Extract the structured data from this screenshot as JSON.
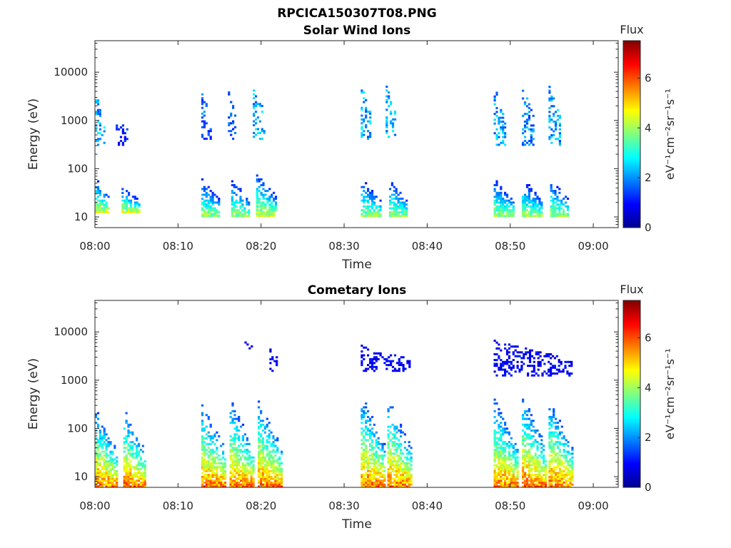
{
  "figure_title": "RPCICA150307T08.PNG",
  "colors": {
    "axis": "#262626",
    "background": "#ffffff"
  },
  "chart_data": [
    {
      "type": "heatmap",
      "title": "Solar Wind Ions",
      "xlabel": "Time",
      "ylabel": "Energy (eV)",
      "x_tick_labels": [
        "08:00",
        "08:10",
        "08:20",
        "08:30",
        "08:40",
        "08:50",
        "09:00"
      ],
      "xlim_minutes": [
        0,
        63
      ],
      "y_scale": "log",
      "y_tick_labels": [
        "10",
        "100",
        "1000",
        "10000"
      ],
      "ylim": [
        6,
        45000
      ],
      "colorbar": {
        "title": "Flux",
        "label": "eV⁻¹cm⁻²sr⁻¹s⁻¹",
        "ticks": [
          "0",
          "2",
          "4",
          "6"
        ],
        "range": [
          0,
          7.5
        ],
        "colormap": "jet"
      },
      "grid": false,
      "bursts": [
        {
          "t_start": 0.0,
          "t_end": 1.7,
          "band": "low",
          "e_lo": 12,
          "e_hi": 60,
          "flux_peak": 5.0
        },
        {
          "t_start": 0.0,
          "t_end": 1.2,
          "band": "high",
          "e_lo": 300,
          "e_hi": 4500,
          "flux_peak": 3.0
        },
        {
          "t_start": 3.2,
          "t_end": 5.4,
          "band": "low",
          "e_lo": 12,
          "e_hi": 40,
          "flux_peak": 5.0
        },
        {
          "t_start": 2.5,
          "t_end": 4.0,
          "band": "high",
          "e_lo": 300,
          "e_hi": 1200,
          "flux_peak": 1.5
        },
        {
          "t_start": 12.8,
          "t_end": 15.0,
          "band": "low",
          "e_lo": 10,
          "e_hi": 60,
          "flux_peak": 4.5
        },
        {
          "t_start": 12.8,
          "t_end": 14.0,
          "band": "high",
          "e_lo": 400,
          "e_hi": 3500,
          "flux_peak": 2.2
        },
        {
          "t_start": 16.4,
          "t_end": 18.6,
          "band": "low",
          "e_lo": 10,
          "e_hi": 60,
          "flux_peak": 4.5
        },
        {
          "t_start": 16.0,
          "t_end": 17.0,
          "band": "high",
          "e_lo": 400,
          "e_hi": 5000,
          "flux_peak": 2.0
        },
        {
          "t_start": 19.4,
          "t_end": 21.8,
          "band": "low",
          "e_lo": 10,
          "e_hi": 80,
          "flux_peak": 5.0
        },
        {
          "t_start": 19.0,
          "t_end": 20.5,
          "band": "high",
          "e_lo": 400,
          "e_hi": 5000,
          "flux_peak": 3.0
        },
        {
          "t_start": 32.0,
          "t_end": 34.4,
          "band": "low",
          "e_lo": 10,
          "e_hi": 60,
          "flux_peak": 4.5
        },
        {
          "t_start": 32.0,
          "t_end": 33.2,
          "band": "high",
          "e_lo": 400,
          "e_hi": 5000,
          "flux_peak": 3.0
        },
        {
          "t_start": 35.4,
          "t_end": 37.6,
          "band": "low",
          "e_lo": 10,
          "e_hi": 60,
          "flux_peak": 4.5
        },
        {
          "t_start": 35.0,
          "t_end": 36.2,
          "band": "high",
          "e_lo": 400,
          "e_hi": 5000,
          "flux_peak": 2.8
        },
        {
          "t_start": 48.0,
          "t_end": 50.4,
          "band": "low",
          "e_lo": 10,
          "e_hi": 60,
          "flux_peak": 4.5
        },
        {
          "t_start": 48.0,
          "t_end": 49.4,
          "band": "high",
          "e_lo": 300,
          "e_hi": 5000,
          "flux_peak": 2.8
        },
        {
          "t_start": 51.4,
          "t_end": 53.8,
          "band": "low",
          "e_lo": 10,
          "e_hi": 60,
          "flux_peak": 4.5
        },
        {
          "t_start": 51.4,
          "t_end": 52.8,
          "band": "high",
          "e_lo": 300,
          "e_hi": 5000,
          "flux_peak": 2.5
        },
        {
          "t_start": 54.8,
          "t_end": 57.0,
          "band": "low",
          "e_lo": 10,
          "e_hi": 60,
          "flux_peak": 4.5
        },
        {
          "t_start": 54.6,
          "t_end": 56.0,
          "band": "high",
          "e_lo": 300,
          "e_hi": 5000,
          "flux_peak": 2.8
        }
      ]
    },
    {
      "type": "heatmap",
      "title": "Cometary Ions",
      "xlabel": "Time",
      "ylabel": "Energy (eV)",
      "x_tick_labels": [
        "08:00",
        "08:10",
        "08:20",
        "08:30",
        "08:40",
        "08:50",
        "09:00"
      ],
      "xlim_minutes": [
        0,
        63
      ],
      "y_scale": "log",
      "y_tick_labels": [
        "10",
        "100",
        "1000",
        "10000"
      ],
      "ylim": [
        6,
        45000
      ],
      "colorbar": {
        "title": "Flux",
        "label": "eV⁻¹cm⁻²sr⁻¹s⁻¹",
        "ticks": [
          "0",
          "2",
          "4",
          "6"
        ],
        "range": [
          0,
          7.5
        ],
        "colormap": "jet"
      },
      "grid": false,
      "bursts": [
        {
          "t_start": 0.0,
          "t_end": 2.6,
          "band": "low",
          "e_lo": 6,
          "e_hi": 250,
          "flux_peak": 6.5
        },
        {
          "t_start": 3.4,
          "t_end": 6.0,
          "band": "low",
          "e_lo": 6,
          "e_hi": 250,
          "flux_peak": 6.5
        },
        {
          "t_start": 12.8,
          "t_end": 15.8,
          "band": "low",
          "e_lo": 6,
          "e_hi": 300,
          "flux_peak": 6.5
        },
        {
          "t_start": 16.2,
          "t_end": 19.0,
          "band": "low",
          "e_lo": 6,
          "e_hi": 400,
          "flux_peak": 6.5
        },
        {
          "t_start": 19.6,
          "t_end": 22.4,
          "band": "low",
          "e_lo": 6,
          "e_hi": 400,
          "flux_peak": 6.5
        },
        {
          "t_start": 32.0,
          "t_end": 34.8,
          "band": "low",
          "e_lo": 6,
          "e_hi": 500,
          "flux_peak": 6.5
        },
        {
          "t_start": 35.2,
          "t_end": 38.0,
          "band": "low",
          "e_lo": 6,
          "e_hi": 400,
          "flux_peak": 6.5
        },
        {
          "t_start": 48.0,
          "t_end": 50.8,
          "band": "low",
          "e_lo": 6,
          "e_hi": 400,
          "flux_peak": 6.5
        },
        {
          "t_start": 51.4,
          "t_end": 54.2,
          "band": "low",
          "e_lo": 6,
          "e_hi": 500,
          "flux_peak": 6.5
        },
        {
          "t_start": 54.6,
          "t_end": 57.4,
          "band": "low",
          "e_lo": 6,
          "e_hi": 400,
          "flux_peak": 6.5
        },
        {
          "t_start": 18.0,
          "t_end": 19.0,
          "band": "high",
          "e_lo": 4000,
          "e_hi": 6000,
          "flux_peak": 1.0
        },
        {
          "t_start": 21.0,
          "t_end": 22.0,
          "band": "high",
          "e_lo": 1500,
          "e_hi": 4500,
          "flux_peak": 1.2
        },
        {
          "t_start": 32.0,
          "t_end": 38.0,
          "band": "high",
          "e_lo": 1500,
          "e_hi": 5000,
          "flux_peak": 1.2
        },
        {
          "t_start": 48.0,
          "t_end": 57.5,
          "band": "high",
          "e_lo": 1200,
          "e_hi": 6500,
          "flux_peak": 1.2
        }
      ]
    }
  ]
}
